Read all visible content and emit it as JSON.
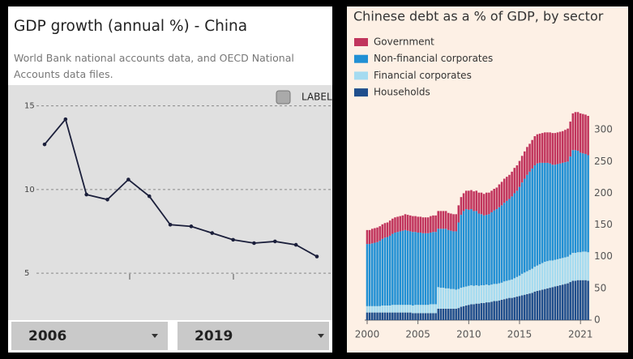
{
  "chart_data": [
    {
      "type": "line",
      "title": "GDP growth (annual %) - China",
      "subtitle": "World Bank national accounts data, and OECD National Accounts data files.",
      "controls": {
        "label_toggle": "LABEL",
        "start_year": "2006",
        "end_year": "2019"
      },
      "categories": [
        null,
        null,
        null,
        null,
        null,
        null,
        null,
        null,
        null,
        null,
        null,
        null,
        null,
        null
      ],
      "values": [
        12.7,
        14.2,
        9.7,
        9.4,
        10.6,
        9.6,
        7.9,
        7.8,
        7.4,
        7.0,
        6.8,
        6.9,
        6.7,
        6.0
      ],
      "color": "#1b1f3b",
      "ylim": [
        2.2,
        16
      ],
      "yticks": [
        5,
        10,
        15
      ],
      "grid": true
    },
    {
      "type": "bar",
      "stacked": true,
      "title": "Chinese debt as a % of GDP, by sector",
      "x": [
        2000,
        2000.25,
        2000.5,
        2000.75,
        2001,
        2001.25,
        2001.5,
        2001.75,
        2002,
        2002.25,
        2002.5,
        2002.75,
        2003,
        2003.25,
        2003.5,
        2003.75,
        2004,
        2004.25,
        2004.5,
        2004.75,
        2005,
        2005.25,
        2005.5,
        2005.75,
        2006,
        2006.25,
        2006.5,
        2006.75,
        2007,
        2007.25,
        2007.5,
        2007.75,
        2008,
        2008.25,
        2008.5,
        2008.75,
        2009,
        2009.25,
        2009.5,
        2009.75,
        2010,
        2010.25,
        2010.5,
        2010.75,
        2011,
        2011.25,
        2011.5,
        2011.75,
        2012,
        2012.25,
        2012.5,
        2012.75,
        2013,
        2013.25,
        2013.5,
        2013.75,
        2014,
        2014.25,
        2014.5,
        2014.75,
        2015,
        2015.25,
        2015.5,
        2015.75,
        2016,
        2016.25,
        2016.5,
        2016.75,
        2017,
        2017.25,
        2017.5,
        2017.75,
        2018,
        2018.25,
        2018.5,
        2018.75,
        2019,
        2019.25,
        2019.5,
        2019.75,
        2020,
        2020.25,
        2020.5,
        2020.75,
        2021,
        2021.25,
        2021.5,
        2021.75
      ],
      "series": [
        {
          "name": "Government",
          "color": "#c1355d",
          "values": [
            22,
            22,
            23,
            23,
            23,
            23,
            23,
            23,
            23,
            24,
            24,
            24,
            24,
            24,
            24,
            25,
            25,
            25,
            25,
            25,
            25,
            25,
            25,
            25,
            25,
            26,
            26,
            26,
            28,
            28,
            28,
            28,
            27,
            27,
            27,
            27,
            27,
            28,
            28,
            29,
            30,
            30,
            31,
            32,
            33,
            34,
            34,
            35,
            34,
            34,
            34,
            34,
            36,
            37,
            38,
            38,
            38,
            39,
            40,
            40,
            41,
            42,
            43,
            44,
            44,
            45,
            46,
            46,
            46,
            47,
            48,
            48,
            49,
            50,
            50,
            50,
            50,
            50,
            51,
            52,
            55,
            58,
            60,
            61,
            62,
            62,
            62,
            62
          ]
        },
        {
          "name": "Non-financial corporates",
          "color": "#2190d4",
          "values": [
            98,
            98,
            99,
            100,
            101,
            103,
            105,
            107,
            108,
            110,
            112,
            114,
            115,
            116,
            117,
            118,
            117,
            116,
            116,
            115,
            114,
            114,
            113,
            113,
            113,
            113,
            114,
            114,
            92,
            93,
            93,
            94,
            92,
            92,
            91,
            92,
            105,
            115,
            120,
            122,
            120,
            120,
            118,
            117,
            114,
            112,
            110,
            110,
            112,
            114,
            116,
            118,
            120,
            122,
            124,
            126,
            128,
            131,
            134,
            136,
            140,
            144,
            148,
            152,
            155,
            158,
            160,
            161,
            160,
            158,
            156,
            155,
            153,
            151,
            150,
            150,
            150,
            150,
            150,
            150,
            155,
            162,
            162,
            160,
            157,
            155,
            154,
            153
          ]
        },
        {
          "name": "Financial corporates",
          "color": "#a5dbf0",
          "values": [
            10,
            10,
            10,
            10,
            10,
            10,
            11,
            11,
            11,
            11,
            12,
            12,
            12,
            12,
            12,
            12,
            12,
            12,
            12,
            13,
            13,
            13,
            13,
            13,
            13,
            14,
            14,
            14,
            34,
            33,
            33,
            32,
            32,
            31,
            31,
            30,
            30,
            30,
            30,
            30,
            30,
            30,
            29,
            29,
            28,
            28,
            28,
            28,
            27,
            27,
            27,
            27,
            27,
            27,
            28,
            28,
            28,
            29,
            30,
            31,
            32,
            34,
            35,
            36,
            37,
            38,
            39,
            40,
            41,
            42,
            43,
            43,
            43,
            42,
            42,
            42,
            42,
            42,
            42,
            42,
            43,
            44,
            44,
            44,
            44,
            45,
            45,
            45
          ]
        },
        {
          "name": "Households",
          "color": "#1f4e8c",
          "values": [
            12,
            12,
            12,
            12,
            12,
            12,
            12,
            12,
            12,
            12,
            12,
            12,
            12,
            12,
            12,
            12,
            12,
            12,
            11,
            11,
            11,
            11,
            11,
            11,
            11,
            11,
            11,
            11,
            18,
            18,
            18,
            18,
            18,
            18,
            18,
            18,
            19,
            21,
            22,
            23,
            24,
            25,
            25,
            26,
            26,
            27,
            27,
            28,
            28,
            29,
            30,
            30,
            31,
            32,
            33,
            34,
            35,
            35,
            36,
            37,
            38,
            39,
            40,
            41,
            42,
            43,
            45,
            46,
            47,
            48,
            49,
            50,
            51,
            52,
            53,
            54,
            55,
            56,
            57,
            58,
            60,
            62,
            62,
            63,
            63,
            63,
            63,
            62
          ]
        }
      ],
      "xlim": [
        1999.76,
        2022.1
      ],
      "xticks": [
        2000,
        2005,
        2010,
        2015,
        2021
      ],
      "ylim": [
        0,
        345
      ],
      "yticks": [
        0,
        50,
        100,
        150,
        200,
        250,
        300
      ],
      "grid": false
    }
  ]
}
